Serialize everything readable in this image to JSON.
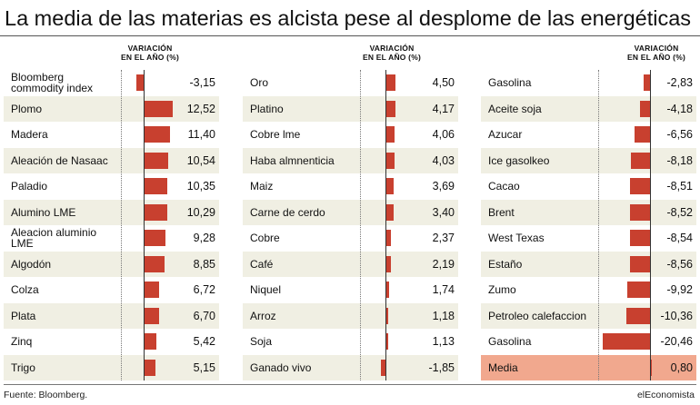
{
  "title": "La media de las materias es alcista pese al desplome de las energéticas",
  "header": {
    "line1": "VARIACIÓN",
    "line2": "EN EL AÑO (%)"
  },
  "colors": {
    "bar": "#c8402f",
    "row_alt": "#f0efe3",
    "highlight": "#f1a88e"
  },
  "chart_data": {
    "type": "bar",
    "orientation": "horizontal",
    "panels": [
      {
        "rows": [
          {
            "label": "Bloomberg commodity index",
            "value": -3.15,
            "text": "-3,15"
          },
          {
            "label": "Plomo",
            "value": 12.52,
            "text": "12,52"
          },
          {
            "label": "Madera",
            "value": 11.4,
            "text": "11,40"
          },
          {
            "label": "Aleación de Nasaac",
            "value": 10.54,
            "text": "10,54"
          },
          {
            "label": "Paladio",
            "value": 10.35,
            "text": "10,35"
          },
          {
            "label": "Alumino LME",
            "value": 10.29,
            "text": "10,29"
          },
          {
            "label": "Aleacion aluminio LME",
            "value": 9.28,
            "text": "9,28"
          },
          {
            "label": "Algodón",
            "value": 8.85,
            "text": "8,85"
          },
          {
            "label": "Colza",
            "value": 6.72,
            "text": "6,72"
          },
          {
            "label": "Plata",
            "value": 6.7,
            "text": "6,70"
          },
          {
            "label": "Zinq",
            "value": 5.42,
            "text": "5,42"
          },
          {
            "label": "Trigo",
            "value": 5.15,
            "text": "5,15"
          }
        ]
      },
      {
        "rows": [
          {
            "label": "Oro",
            "value": 4.5,
            "text": "4,50"
          },
          {
            "label": "Platino",
            "value": 4.17,
            "text": "4,17"
          },
          {
            "label": "Cobre lme",
            "value": 4.06,
            "text": "4,06"
          },
          {
            "label": "Haba almnenticia",
            "value": 4.03,
            "text": "4,03"
          },
          {
            "label": "Maiz",
            "value": 3.69,
            "text": "3,69"
          },
          {
            "label": "Carne de cerdo",
            "value": 3.4,
            "text": "3,40"
          },
          {
            "label": "Cobre",
            "value": 2.37,
            "text": "2,37"
          },
          {
            "label": "Café",
            "value": 2.19,
            "text": "2,19"
          },
          {
            "label": "Niquel",
            "value": 1.74,
            "text": "1,74"
          },
          {
            "label": "Arroz",
            "value": 1.18,
            "text": "1,18"
          },
          {
            "label": "Soja",
            "value": 1.13,
            "text": "1,13"
          },
          {
            "label": "Ganado vivo",
            "value": -1.85,
            "text": "-1,85"
          }
        ]
      },
      {
        "rows": [
          {
            "label": "Gasolina",
            "value": -2.83,
            "text": "-2,83"
          },
          {
            "label": "Aceite soja",
            "value": -4.18,
            "text": "-4,18"
          },
          {
            "label": "Azucar",
            "value": -6.56,
            "text": "-6,56"
          },
          {
            "label": "Ice gasolkeo",
            "value": -8.18,
            "text": "-8,18"
          },
          {
            "label": "Cacao",
            "value": -8.51,
            "text": "-8,51"
          },
          {
            "label": "Brent",
            "value": -8.52,
            "text": "-8,52"
          },
          {
            "label": "West Texas",
            "value": -8.54,
            "text": "-8,54"
          },
          {
            "label": "Estaño",
            "value": -8.56,
            "text": "-8,56"
          },
          {
            "label": "Zumo",
            "value": -9.92,
            "text": "-9,92"
          },
          {
            "label": "Petroleo calefaccion",
            "value": -10.36,
            "text": "-10,36"
          },
          {
            "label": "Gasolina",
            "value": -20.46,
            "text": "-20,46"
          },
          {
            "label": "Media",
            "value": 0.8,
            "text": "0,80",
            "highlight": true
          }
        ]
      }
    ]
  },
  "footer": {
    "source": "Fuente: Bloomberg.",
    "brand": "elEconomista"
  }
}
